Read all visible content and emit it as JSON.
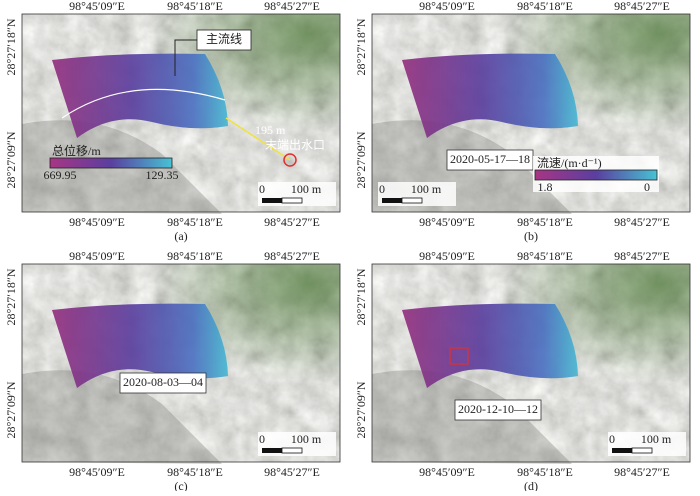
{
  "panels": [
    {
      "caption": "(a)",
      "lon_top": [
        "98°45′09″E",
        "98°45′18″E",
        "98°45′27″E"
      ],
      "lon_bottom": [
        "98°45′09″E",
        "98°45′18″E",
        "98°45′27″E"
      ],
      "lat": [
        "28°27′18″N",
        "28°27′09″N"
      ],
      "legend": {
        "title": "总位移/m",
        "min_label": "669.95",
        "max_label": "129.35"
      },
      "scale": [
        "0",
        "100 m"
      ],
      "annotations": {
        "flow_line": "主流线",
        "distance": "195 m",
        "outlet": "末端出水口"
      }
    },
    {
      "caption": "(b)",
      "lon_top": [
        "98°45′09″E",
        "98°45′18″E",
        "98°45′27″E"
      ],
      "lon_bottom": [
        "98°45′09″E",
        "98°45′18″E",
        "98°45′27″E"
      ],
      "lat": [
        "28°27′18″N",
        "28°27′09″N"
      ],
      "date": "2020-05-17—18",
      "legend": {
        "title": "流速/(m·d⁻¹)",
        "min_label": "1.8",
        "max_label": "0"
      },
      "scale": [
        "0",
        "100 m"
      ]
    },
    {
      "caption": "(c)",
      "lon_top": [
        "98°45′09″E",
        "98°45′18″E",
        "98°45′27″E"
      ],
      "lon_bottom": [
        "98°45′09″E",
        "98°45′18″E",
        "98°45′27″E"
      ],
      "lat": [
        "28°27′18″N",
        "28°27′09″N"
      ],
      "date": "2020-08-03—04",
      "scale": [
        "0",
        "100 m"
      ]
    },
    {
      "caption": "(d)",
      "lon_top": [
        "98°45′09″E",
        "98°45′18″E",
        "98°45′27″E"
      ],
      "lon_bottom": [
        "98°45′09″E",
        "98°45′18″E",
        "98°45′27″E"
      ],
      "lat": [
        "28°27′18″N",
        "28°27′09″N"
      ],
      "date": "2020-12-10—12",
      "scale": [
        "0",
        "100 m"
      ]
    }
  ]
}
